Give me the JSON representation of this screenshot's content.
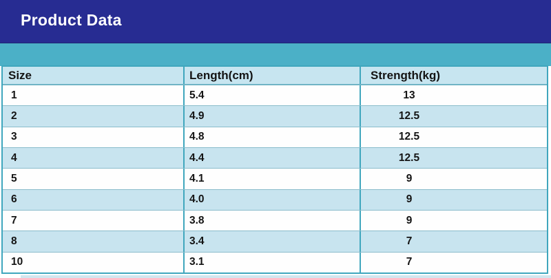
{
  "banner": {
    "title": "Product Data"
  },
  "colors": {
    "banner_navy": "#272c92",
    "band_teal": "#4bb0c7",
    "header_row_blue": "#c7e5f0",
    "alt_row_blue": "#c8e4ef",
    "border_teal": "#3fa6bd",
    "text_dark": "#141414",
    "title_white": "#ffffff"
  },
  "chart_data": {
    "type": "table",
    "title": "Product Data",
    "columns": [
      "Size",
      "Length(cm)",
      "Strength(kg)"
    ],
    "rows": [
      [
        "1",
        "5.4",
        "13"
      ],
      [
        "2",
        "4.9",
        "12.5"
      ],
      [
        "3",
        "4.8",
        "12.5"
      ],
      [
        "4",
        "4.4",
        "12.5"
      ],
      [
        "5",
        "4.1",
        "9"
      ],
      [
        "6",
        "4.0",
        "9"
      ],
      [
        "7",
        "3.8",
        "9"
      ],
      [
        "8",
        "3.4",
        "7"
      ],
      [
        "10",
        "3.1",
        "7"
      ]
    ],
    "layout_hints": {
      "row_striping": "odd rows white, even rows light blue",
      "header_background": "light blue",
      "grid": "teal borders"
    }
  }
}
